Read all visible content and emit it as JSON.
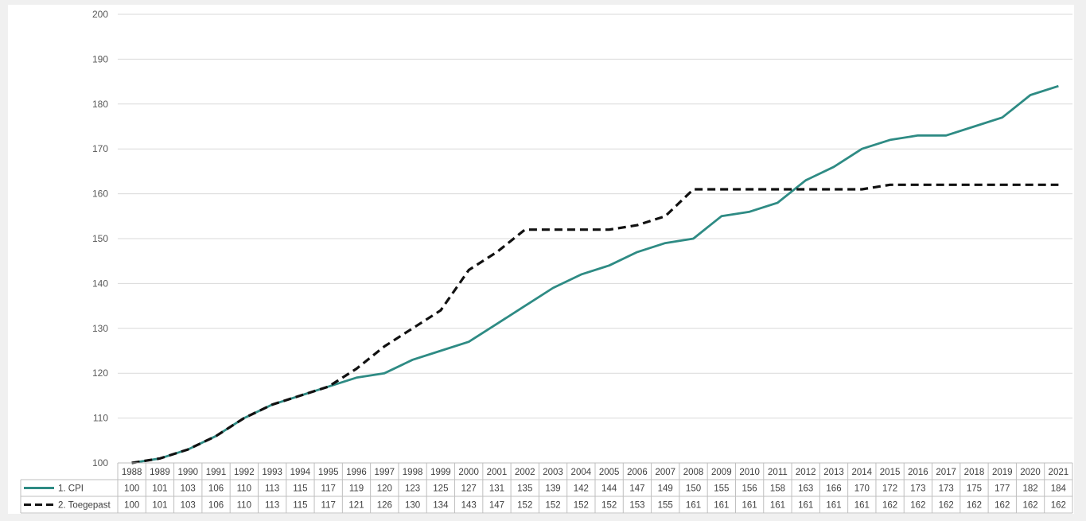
{
  "chart_data": {
    "type": "line",
    "title": "",
    "xlabel": "",
    "ylabel": "",
    "ylim": [
      100,
      200
    ],
    "yticks": [
      100,
      110,
      120,
      130,
      140,
      150,
      160,
      170,
      180,
      190,
      200
    ],
    "grid": true,
    "legend": "data-table-left",
    "data_table": true,
    "categories": [
      "1988",
      "1989",
      "1990",
      "1991",
      "1992",
      "1993",
      "1994",
      "1995",
      "1996",
      "1997",
      "1998",
      "1999",
      "2000",
      "2001",
      "2002",
      "2003",
      "2004",
      "2005",
      "2006",
      "2007",
      "2008",
      "2009",
      "2010",
      "2011",
      "2012",
      "2013",
      "2014",
      "2015",
      "2016",
      "2017",
      "2018",
      "2019",
      "2020",
      "2021"
    ],
    "series": [
      {
        "name": "1. CPI",
        "color": "#2e8b84",
        "dash": "solid",
        "values": [
          100,
          101,
          103,
          106,
          110,
          113,
          115,
          117,
          119,
          120,
          123,
          125,
          127,
          131,
          135,
          139,
          142,
          144,
          147,
          149,
          150,
          155,
          156,
          158,
          163,
          166,
          170,
          172,
          173,
          173,
          175,
          177,
          182,
          184
        ]
      },
      {
        "name": "2. Toegepast",
        "color": "#111111",
        "dash": "dashed",
        "values": [
          100,
          101,
          103,
          106,
          110,
          113,
          115,
          117,
          121,
          126,
          130,
          134,
          143,
          147,
          152,
          152,
          152,
          152,
          153,
          155,
          161,
          161,
          161,
          161,
          161,
          161,
          161,
          162,
          162,
          162,
          162,
          162,
          162,
          162
        ]
      }
    ]
  }
}
